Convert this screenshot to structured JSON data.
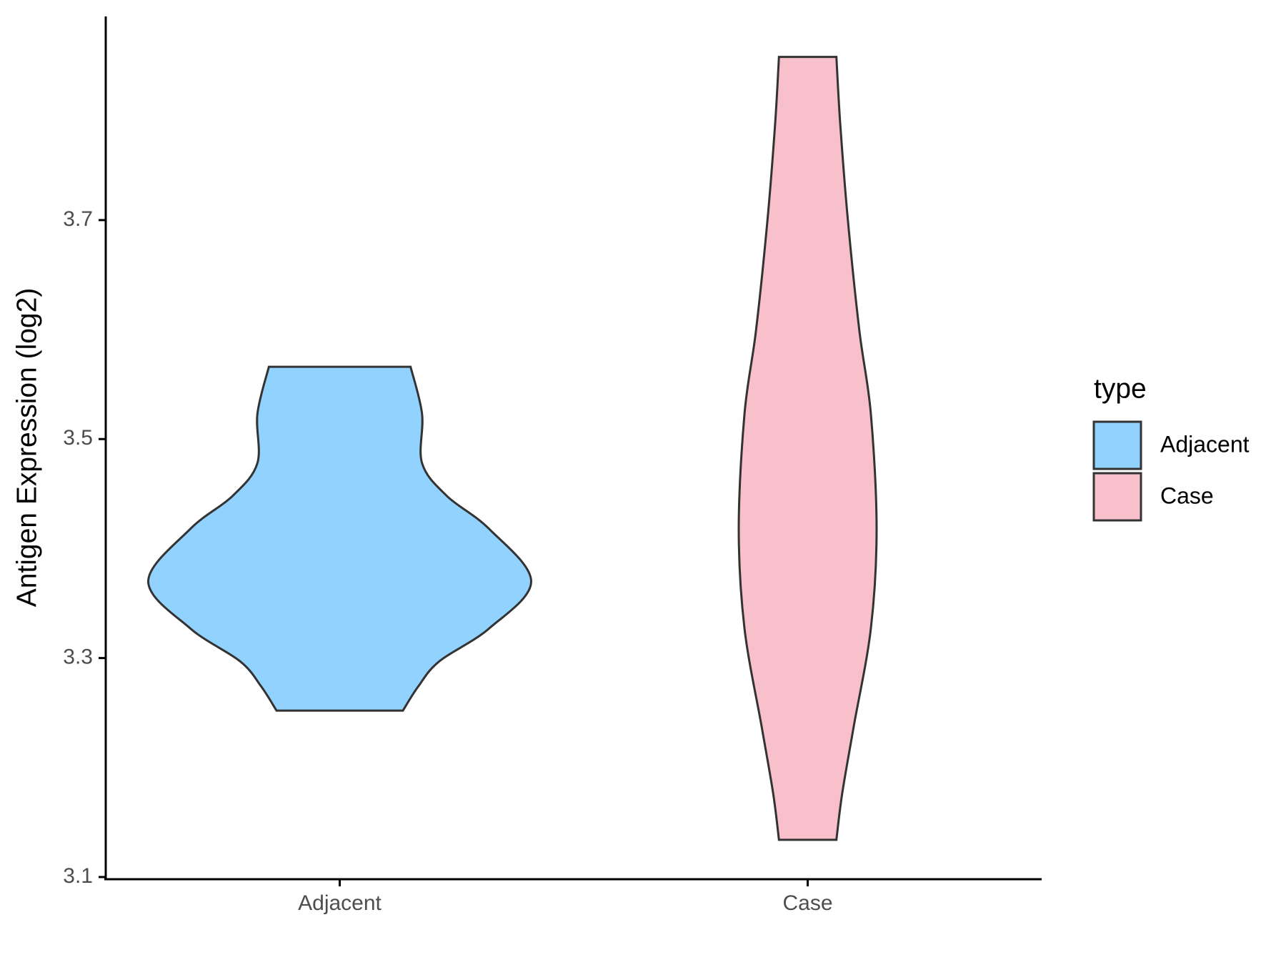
{
  "chart_data": {
    "type": "violin",
    "y_label": "Antigen Expression (log2)",
    "categories": [
      "Adjacent",
      "Case"
    ],
    "series": [
      {
        "name": "Adjacent",
        "color": "#92d2fe",
        "y": [
          3.566,
          3.523,
          3.478,
          3.448,
          3.418,
          3.37,
          3.327,
          3.297,
          3.274,
          3.252
        ],
        "density": [
          0.37,
          0.43,
          0.43,
          0.56,
          0.78,
          1.0,
          0.78,
          0.52,
          0.41,
          0.33
        ]
      },
      {
        "name": "Case",
        "color": "#f7c0cb",
        "y": [
          3.849,
          3.788,
          3.7,
          3.599,
          3.523,
          3.418,
          3.327,
          3.237,
          3.176,
          3.134
        ],
        "density": [
          0.15,
          0.17,
          0.21,
          0.27,
          0.33,
          0.36,
          0.33,
          0.24,
          0.18,
          0.15
        ]
      }
    ],
    "ylim": [
      3.098,
      3.886
    ],
    "yticks": [
      3.1,
      3.3,
      3.5,
      3.7
    ],
    "legend_title": "type",
    "legend": "right"
  }
}
